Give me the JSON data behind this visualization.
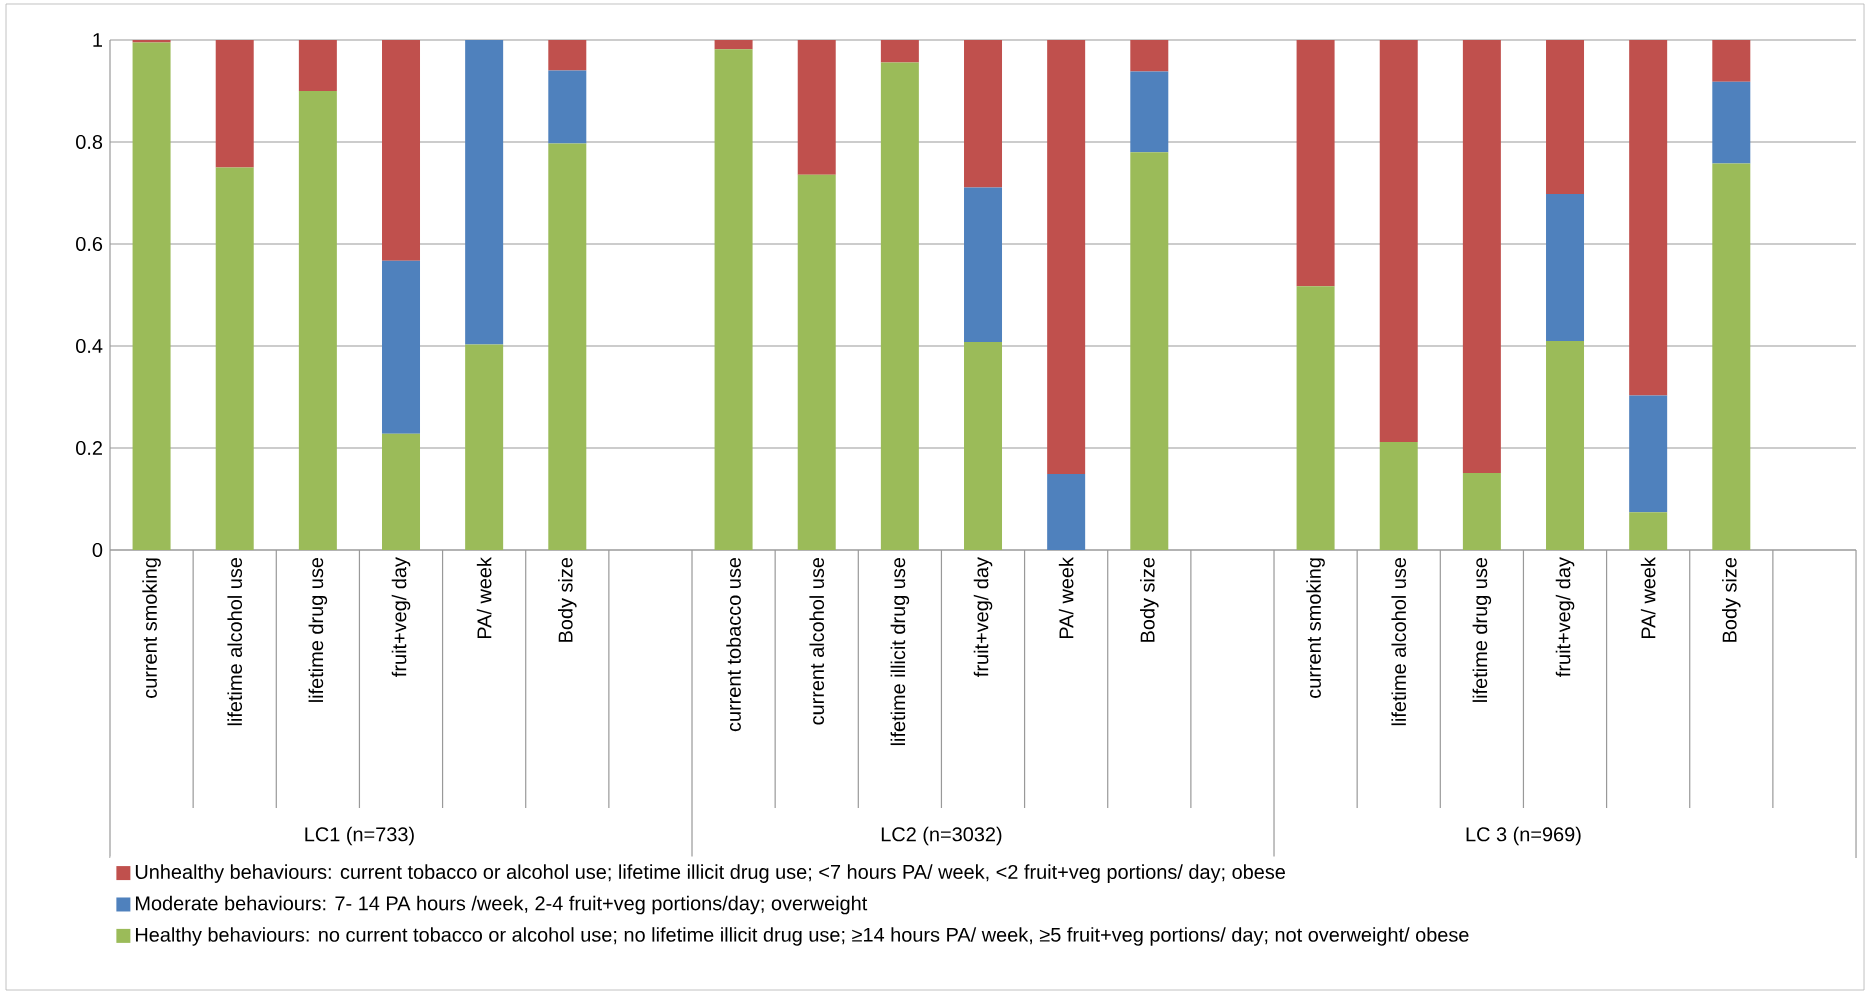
{
  "chart_data": {
    "type": "bar",
    "stacked": true,
    "categories": [
      "current smoking",
      "lifetime alcohol use",
      "lifetime drug use",
      "fruit+veg/ day",
      "PA/ week",
      "Body size",
      null,
      "current tobacco use",
      "current alcohol use",
      "lifetime illicit drug use",
      "fruit+veg/ day",
      "PA/ week",
      "Body size",
      null,
      "current smoking",
      "lifetime alcohol use",
      "lifetime drug use",
      "fruit+veg/ day",
      "PA/ week",
      "Body size",
      null
    ],
    "series": [
      {
        "name": "Healthy behaviours: no current tobacco or alcohol use; no lifetime illicit drug use; ≥14 hours PA/ week, ≥5 fruit+veg portions/ day; not overweight/ obese",
        "color": "#9bbb59",
        "values": [
          0.995,
          0.75,
          0.9,
          0.228,
          0.403,
          0.797,
          null,
          0.982,
          0.736,
          0.956,
          0.408,
          0,
          0.78,
          null,
          0.517,
          0.212,
          0.151,
          0.41,
          0.074,
          0.758,
          null
        ]
      },
      {
        "name": "Moderate behaviours: 7- 14 PA hours /week, 2-4 fruit+veg portions/day; overweight",
        "color": "#4f81bd",
        "values": [
          0,
          0,
          0,
          0.339,
          0.597,
          0.143,
          null,
          0,
          0,
          0,
          0.303,
          0.149,
          0.158,
          null,
          0,
          0,
          0,
          0.288,
          0.229,
          0.16,
          null
        ]
      },
      {
        "name": "Unhealthy behaviours: current tobacco or alcohol use; lifetime illicit drug use; <7  hours PA/ week, <2 fruit+veg portions/ day; obese",
        "color": "#c0504d",
        "values": [
          0.005,
          0.25,
          0.1,
          0.433,
          0,
          0.06,
          null,
          0.018,
          0.264,
          0.044,
          0.289,
          0.851,
          0.062,
          null,
          0.483,
          0.788,
          0.849,
          0.302,
          0.697,
          0.082,
          null
        ]
      }
    ],
    "annotations": [
      "LC1 (n=733)",
      "LC2 (n=3032)",
      "LC 3 (n=969)"
    ],
    "ylim": [
      0,
      1
    ],
    "yticks": [
      0,
      0.2,
      0.4,
      0.6,
      0.8,
      1
    ],
    "grid": "y",
    "legend": "bottom"
  }
}
